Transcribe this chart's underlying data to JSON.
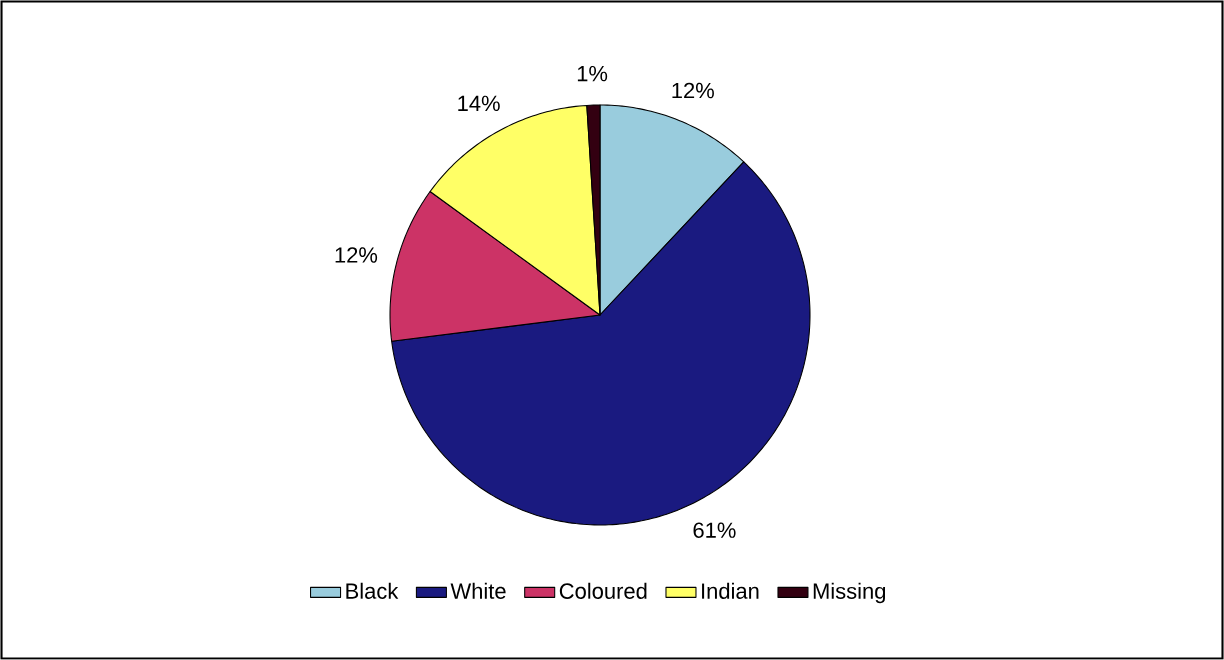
{
  "chart_data": {
    "type": "pie",
    "categories": [
      "Black",
      "White",
      "Coloured",
      "Indian",
      "Missing"
    ],
    "values": [
      12,
      61,
      12,
      14,
      1
    ],
    "colors": [
      "#99ccdd",
      "#1a1a80",
      "#cc3366",
      "#ffff66",
      "#330011"
    ],
    "value_labels": [
      "12%",
      "61%",
      "12%",
      "14%",
      "1%"
    ],
    "legend": "bottom"
  }
}
